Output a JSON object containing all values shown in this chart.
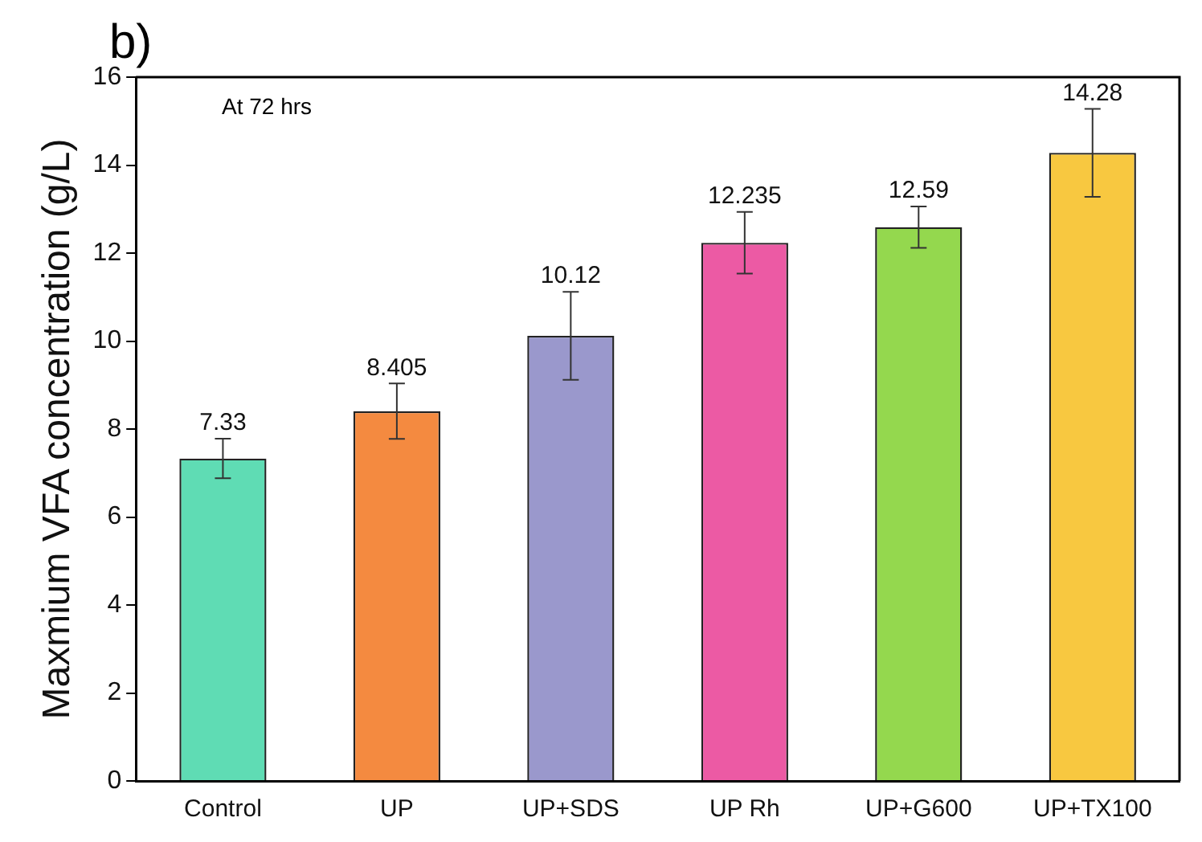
{
  "chart_data": {
    "type": "bar",
    "ylabel": "Maxmium VFA concentration (g/L)",
    "annotations": [
      "b)",
      "At 72 hrs"
    ],
    "categories": [
      "Control",
      "UP",
      "UP+SDS",
      "UP Rh",
      "UP+G600",
      "UP+TX100"
    ],
    "values": [
      7.33,
      8.405,
      10.12,
      12.235,
      12.59,
      14.28
    ],
    "colors": [
      "#5fdcb4",
      "#f48a40",
      "#9a98cc",
      "#ec5aa4",
      "#94d84e",
      "#f8c840"
    ],
    "errors": [
      0.45,
      0.63,
      1.0,
      0.7,
      0.47,
      1.0
    ],
    "data_labels": true,
    "ylim": [
      0,
      16
    ],
    "yticks": [
      0,
      2,
      4,
      6,
      8,
      10,
      12,
      14,
      16
    ],
    "grid": false,
    "legend": false
  }
}
